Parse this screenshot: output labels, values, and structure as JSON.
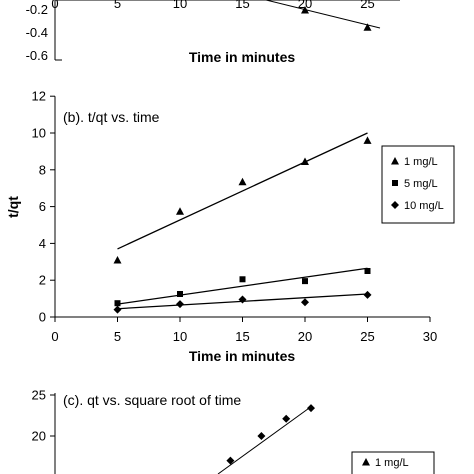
{
  "chart_data": [
    {
      "type": "scatter",
      "panel": "a",
      "xlabel": "Time in minutes",
      "xtick_labels": [
        "0",
        "5",
        "10",
        "15",
        "20",
        "25"
      ],
      "ytick_labels": [
        "-0.2",
        "-0.4",
        "-0.6"
      ],
      "series": [
        {
          "name": "",
          "marker": "triangle",
          "x": [
            20,
            25
          ],
          "y": [
            -0.2,
            -0.35
          ]
        }
      ]
    },
    {
      "type": "scatter",
      "panel": "b",
      "title": "(b).  t/qt vs. time",
      "xlabel": "Time in minutes",
      "ylabel": "t/qt",
      "xlim": [
        0,
        30
      ],
      "ylim": [
        0,
        12
      ],
      "xtick_labels": [
        "0",
        "5",
        "10",
        "15",
        "20",
        "25",
        "30"
      ],
      "ytick_labels": [
        "0",
        "2",
        "4",
        "6",
        "8",
        "10",
        "12"
      ],
      "legend_position": "right",
      "series": [
        {
          "name": "1 mg/L",
          "marker": "triangle",
          "x": [
            5,
            10,
            15,
            20,
            25
          ],
          "y": [
            3.1,
            5.75,
            7.35,
            8.45,
            9.6
          ],
          "fit": [
            3.7,
            10.0
          ]
        },
        {
          "name": "5 mg/L",
          "marker": "square",
          "x": [
            5,
            10,
            15,
            20,
            25
          ],
          "y": [
            0.75,
            1.25,
            2.05,
            1.95,
            2.5
          ],
          "fit": [
            0.7,
            2.65
          ]
        },
        {
          "name": "10 mg/L",
          "marker": "diamond",
          "x": [
            5,
            10,
            15,
            20,
            25
          ],
          "y": [
            0.4,
            0.7,
            0.95,
            0.8,
            1.2
          ],
          "fit": [
            0.45,
            1.25
          ]
        }
      ]
    },
    {
      "type": "scatter",
      "panel": "c",
      "title": "(c).  qt vs. square root of time",
      "ytick_labels": [
        "25",
        "20"
      ],
      "legend_position": "right",
      "series": [
        {
          "name": "1 mg/L",
          "marker": "diamond",
          "x": [
            3.7,
            4.2,
            4.6,
            5.0
          ],
          "y": [
            17.0,
            20.0,
            22.1,
            23.4
          ]
        }
      ]
    }
  ]
}
